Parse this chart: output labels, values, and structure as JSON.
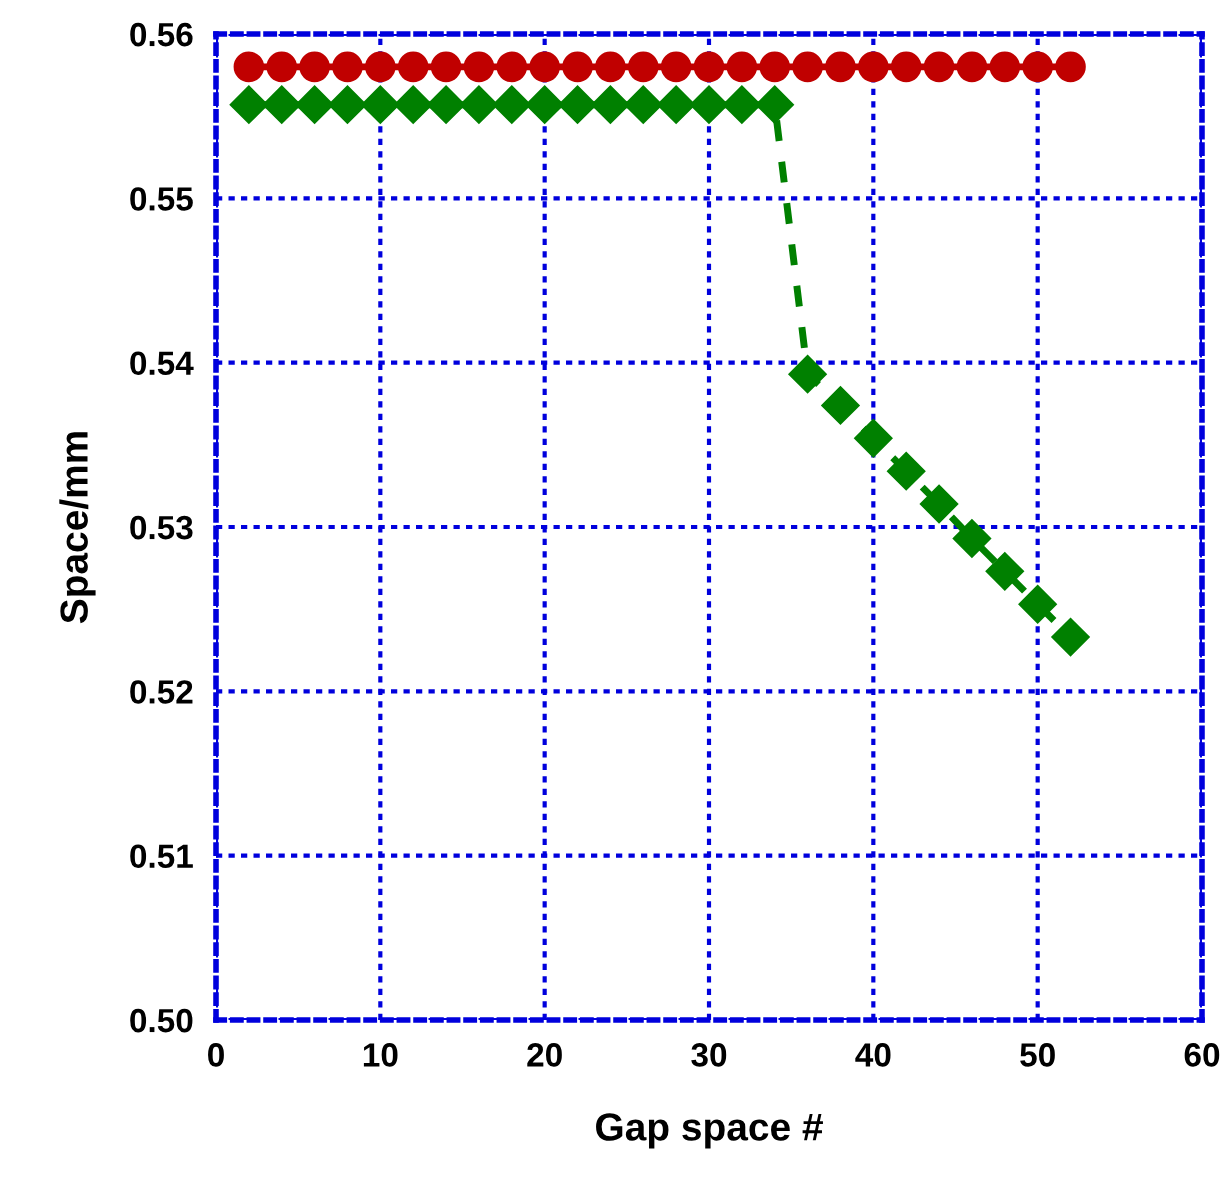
{
  "chart_data": {
    "type": "line",
    "xlabel": "Gap space #",
    "ylabel": "Space/mm",
    "x": [
      2,
      4,
      6,
      8,
      10,
      12,
      14,
      16,
      18,
      20,
      22,
      24,
      26,
      28,
      30,
      32,
      34,
      36,
      38,
      40,
      42,
      44,
      46,
      48,
      50,
      52
    ],
    "series": [
      {
        "color": "#c00000",
        "marker": "circle",
        "line_style": "solid",
        "values": [
          0.558,
          0.558,
          0.558,
          0.558,
          0.558,
          0.558,
          0.558,
          0.558,
          0.558,
          0.558,
          0.558,
          0.558,
          0.558,
          0.558,
          0.558,
          0.558,
          0.558,
          0.558,
          0.558,
          0.558,
          0.558,
          0.558,
          0.558,
          0.558,
          0.558,
          0.558
        ]
      },
      {
        "color": "#008000",
        "marker": "diamond",
        "line_style": "dashed",
        "values": [
          0.5557,
          0.5557,
          0.5557,
          0.5557,
          0.5557,
          0.5557,
          0.5557,
          0.5557,
          0.5557,
          0.5557,
          0.5557,
          0.5557,
          0.5557,
          0.5557,
          0.5557,
          0.5557,
          0.5557,
          0.5393,
          0.5374,
          0.5354,
          0.5334,
          0.5314,
          0.5293,
          0.5273,
          0.5253,
          0.5233
        ]
      }
    ],
    "xlim": [
      0,
      60
    ],
    "xticks": [
      0,
      10,
      20,
      30,
      40,
      50,
      60
    ],
    "ylim": [
      0.5,
      0.56
    ],
    "yticks": [
      {
        "value": 0.5,
        "label": "0.50"
      },
      {
        "value": 0.51,
        "label": "0.51"
      },
      {
        "value": 0.52,
        "label": "0.52"
      },
      {
        "value": 0.53,
        "label": "0.53"
      },
      {
        "value": 0.54,
        "label": "0.54"
      },
      {
        "value": 0.55,
        "label": "0.55"
      },
      {
        "value": 0.56,
        "label": "0.56"
      }
    ],
    "grid": true
  }
}
